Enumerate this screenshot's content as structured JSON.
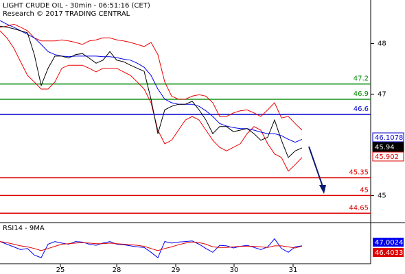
{
  "chart_data": [
    {
      "type": "line",
      "title": "LIGHT CRUDE OIL - 30min - 06:51:16 (CET)",
      "subtitle": "Research © 2017 TRADING CENTRAL",
      "x": [
        0,
        1,
        2,
        3,
        4,
        5,
        6,
        7,
        8,
        9,
        10,
        11,
        12,
        13,
        14,
        15,
        16,
        17,
        18,
        19,
        20,
        21,
        22,
        23,
        24,
        25,
        26,
        27,
        28,
        29,
        30,
        31,
        32,
        33,
        34,
        35,
        36,
        37,
        38,
        39,
        40,
        41,
        42,
        43,
        44
      ],
      "xlim": [
        0,
        54
      ],
      "ylim": [
        44.465,
        48.857
      ],
      "yticks": [
        45,
        47,
        48
      ],
      "series": [
        {
          "color": "#ee0000",
          "values": [
            48.32,
            48.34,
            48.38,
            48.32,
            48.25,
            48.11,
            48.05,
            48.05,
            48.05,
            48.07,
            48.05,
            48.02,
            47.98,
            48.05,
            48.07,
            48.11,
            48.11,
            48.07,
            48.05,
            48.02,
            47.98,
            47.94,
            48.02,
            47.78,
            47.24,
            46.96,
            46.9,
            46.9,
            46.96,
            46.99,
            46.96,
            46.83,
            46.56,
            46.56,
            46.63,
            46.67,
            46.69,
            46.63,
            46.56,
            46.69,
            46.83,
            46.53,
            46.56,
            46.42,
            46.29
          ]
        },
        {
          "color": "#ee0000",
          "values": [
            48.25,
            48.11,
            47.91,
            47.64,
            47.37,
            47.24,
            47.1,
            47.1,
            47.24,
            47.51,
            47.57,
            47.57,
            47.57,
            47.51,
            47.44,
            47.51,
            47.51,
            47.51,
            47.44,
            47.37,
            47.24,
            47.1,
            46.83,
            46.29,
            46.02,
            46.09,
            46.29,
            46.49,
            46.56,
            46.49,
            46.29,
            46.09,
            45.95,
            45.88,
            45.95,
            46.02,
            46.22,
            46.36,
            46.29,
            46.02,
            45.82,
            45.75,
            45.48,
            45.61,
            45.75
          ]
        },
        {
          "color": "#0000ee",
          "values": [
            48.45,
            48.38,
            48.32,
            48.25,
            48.18,
            48.11,
            47.98,
            47.84,
            47.78,
            47.75,
            47.74,
            47.75,
            47.75,
            47.75,
            47.75,
            47.74,
            47.74,
            47.72,
            47.69,
            47.67,
            47.61,
            47.53,
            47.37,
            47.1,
            46.9,
            46.83,
            46.8,
            46.8,
            46.8,
            46.76,
            46.67,
            46.56,
            46.42,
            46.37,
            46.34,
            46.32,
            46.32,
            46.29,
            46.25,
            46.22,
            46.22,
            46.18,
            46.11,
            46.05,
            46.1078
          ]
        },
        {
          "color": "#000000",
          "values": [
            48.34,
            48.32,
            48.29,
            48.25,
            48.21,
            47.78,
            47.17,
            47.51,
            47.75,
            47.75,
            47.71,
            47.78,
            47.8,
            47.71,
            47.61,
            47.67,
            47.84,
            47.67,
            47.64,
            47.57,
            47.51,
            47.45,
            46.9,
            46.22,
            46.69,
            46.76,
            46.8,
            46.8,
            46.86,
            46.69,
            46.49,
            46.22,
            46.36,
            46.36,
            46.26,
            46.29,
            46.32,
            46.22,
            46.09,
            46.15,
            46.49,
            46.09,
            45.75,
            45.88,
            45.94
          ]
        }
      ],
      "levels": [
        {
          "value": 47.2,
          "color": "#008800"
        },
        {
          "value": 46.9,
          "color": "#008800"
        },
        {
          "value": 46.6,
          "color": "#0000cc"
        },
        {
          "value": 45.35,
          "color": "#dd0000"
        },
        {
          "value": 45,
          "color": "#dd0000"
        },
        {
          "value": 44.65,
          "color": "#dd0000"
        }
      ],
      "price_boxes": [
        {
          "value": 46.1078,
          "color": "#0000cc"
        },
        {
          "value": 45.94,
          "color": "#000000"
        },
        {
          "value": 45.902,
          "color": "#dd0000"
        }
      ]
    },
    {
      "type": "line",
      "title": "RSI14 - 9MA",
      "x": [
        0,
        1,
        2,
        3,
        4,
        5,
        6,
        7,
        8,
        9,
        10,
        11,
        12,
        13,
        14,
        15,
        16,
        17,
        18,
        19,
        20,
        21,
        22,
        23,
        24,
        25,
        26,
        27,
        28,
        29,
        30,
        31,
        32,
        33,
        34,
        35,
        36,
        37,
        38,
        39,
        40,
        41,
        42,
        43,
        44
      ],
      "xlim": [
        0,
        54
      ],
      "ylim": [
        10,
        90
      ],
      "xticks": [
        {
          "value": 8.8,
          "label": "25"
        },
        {
          "value": 17,
          "label": "28"
        },
        {
          "value": 25.6,
          "label": "29"
        },
        {
          "value": 34.1,
          "label": "30"
        },
        {
          "value": 42.7,
          "label": "31"
        }
      ],
      "series": [
        {
          "color": "#0000ee",
          "values": [
            55,
            50,
            45,
            40,
            42,
            30,
            25,
            50,
            55,
            52,
            50,
            55,
            54,
            50,
            48,
            52,
            55,
            50,
            49,
            47,
            45,
            44,
            35,
            25,
            55,
            52,
            54,
            55,
            56,
            50,
            42,
            35,
            48,
            47,
            43,
            46,
            48,
            44,
            40,
            45,
            60,
            42,
            35,
            45,
            47.0024
          ]
        },
        {
          "color": "#dd0000",
          "values": [
            55,
            53,
            50,
            47,
            45,
            42,
            38,
            42,
            46,
            50,
            51,
            52,
            53,
            52,
            51,
            51,
            52,
            51,
            50,
            49,
            48,
            46,
            42,
            38,
            42,
            45,
            49,
            52,
            54,
            53,
            50,
            45,
            44,
            44,
            45,
            46,
            46,
            46,
            45,
            44,
            47,
            47,
            45,
            43,
            46.4033
          ]
        }
      ]
    }
  ]
}
